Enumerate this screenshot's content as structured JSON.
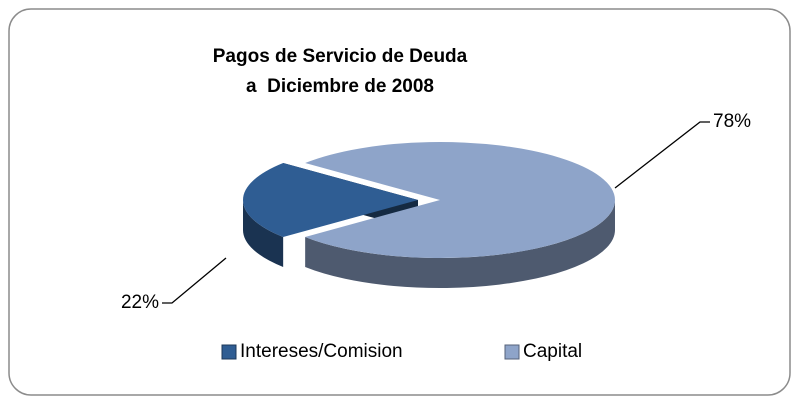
{
  "chart_data": {
    "type": "pie3d",
    "title": [
      "Pagos de Servicio de Deuda",
      "a  Diciembre de 2008"
    ],
    "categories": [
      "Intereses/Comision",
      "Capital"
    ],
    "values": [
      22,
      78
    ],
    "value_labels": [
      "22%",
      "78%"
    ],
    "colors": [
      "#2f5d93",
      "#8ea4c9"
    ],
    "legend": "bottom"
  }
}
